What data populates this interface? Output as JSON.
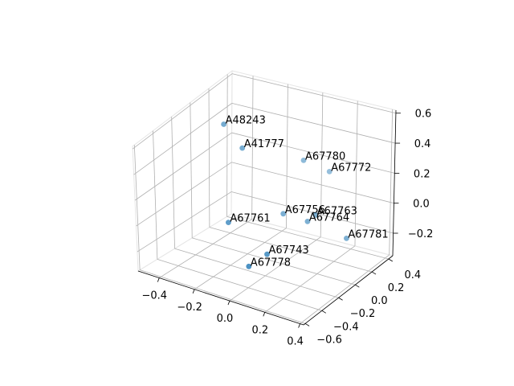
{
  "chart_data": {
    "type": "scatter",
    "title": "",
    "xlabel": "",
    "ylabel": "",
    "zlabel": "",
    "x_ticks": [
      "−0.4",
      "−0.2",
      "0.0",
      "0.2",
      "0.4"
    ],
    "y_ticks": [
      "−0.6",
      "−0.4",
      "−0.2",
      "0.0",
      "0.2",
      "0.4"
    ],
    "z_ticks": [
      "−0.2",
      "0.0",
      "0.2",
      "0.4",
      "0.6"
    ],
    "xlim": [
      -0.52,
      0.42
    ],
    "ylim": [
      -0.62,
      0.45
    ],
    "zlim": [
      -0.35,
      0.62
    ],
    "grid": true,
    "marker_color": "#1f77b4",
    "points": [
      {
        "label": "A48243",
        "x": -0.4,
        "y": 0.13,
        "z": 0.44
      },
      {
        "label": "A41777",
        "x": -0.3,
        "y": 0.14,
        "z": 0.3
      },
      {
        "label": "A67780",
        "x": -0.05,
        "y": 0.34,
        "z": 0.2
      },
      {
        "label": "A67772",
        "x": 0.06,
        "y": 0.42,
        "z": 0.12
      },
      {
        "label": "A67756",
        "x": -0.08,
        "y": 0.17,
        "z": -0.1
      },
      {
        "label": "A67763",
        "x": 0.08,
        "y": 0.22,
        "z": -0.08
      },
      {
        "label": "A67764",
        "x": 0.05,
        "y": 0.19,
        "z": -0.12
      },
      {
        "label": "A67761",
        "x": -0.28,
        "y": -0.06,
        "z": -0.13
      },
      {
        "label": "A67781",
        "x": 0.27,
        "y": 0.2,
        "z": -0.17
      },
      {
        "label": "A67743",
        "x": -0.02,
        "y": -0.14,
        "z": -0.23
      },
      {
        "label": "A67778",
        "x": -0.08,
        "y": -0.23,
        "z": -0.3
      }
    ]
  }
}
